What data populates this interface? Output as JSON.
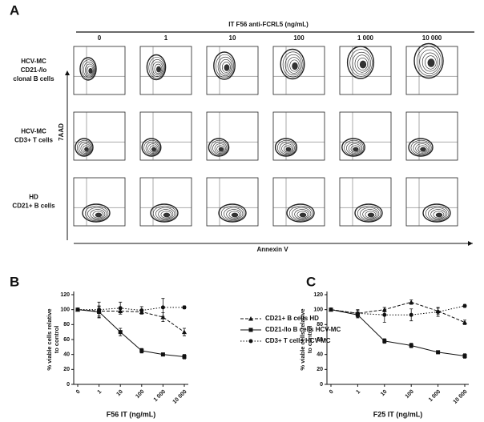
{
  "panel_a": {
    "label": "A",
    "title": "IT F56 anti-FCRL5 (ng/mL)",
    "columns": [
      "0",
      "1",
      "10",
      "100",
      "1 000",
      "10 000"
    ],
    "rows": [
      [
        "HCV-MC",
        "CD21-/lo",
        "clonal B cells"
      ],
      [
        "HCV-MC",
        "CD3+ T cells"
      ],
      [
        "HD",
        "CD21+ B cells"
      ]
    ],
    "y_label": "7AAD",
    "x_label": "Annexin V"
  },
  "chart_data": [
    {
      "type": "line",
      "panel_label": "B",
      "categories": [
        "0",
        "1",
        "10",
        "100",
        "1 000",
        "10 000"
      ],
      "x_label": "F56 IT (ng/mL)",
      "y_label": [
        "% viable cells relative",
        "to control"
      ],
      "ylim": [
        0,
        120
      ],
      "yticks": [
        0,
        20,
        40,
        60,
        80,
        100,
        120
      ],
      "series": [
        {
          "name": "CD21+ B cells HD",
          "color": "#111",
          "dash": "4 2",
          "marker": "triangle",
          "values": [
            100,
            98,
            98,
            97,
            90,
            70
          ],
          "errors": [
            0,
            6,
            4,
            3,
            6,
            5
          ]
        },
        {
          "name": "CD21-/lo B cells HCV-MC",
          "color": "#111",
          "dash": "",
          "marker": "square",
          "values": [
            100,
            97,
            70,
            45,
            40,
            37
          ],
          "errors": [
            0,
            8,
            5,
            3,
            2,
            3
          ]
        },
        {
          "name": "CD3+ T cells HCV-MC",
          "color": "#111",
          "dash": "1.5 2",
          "marker": "circle",
          "values": [
            100,
            100,
            102,
            99,
            103,
            103
          ],
          "errors": [
            0,
            10,
            8,
            5,
            12,
            2
          ]
        }
      ]
    },
    {
      "type": "line",
      "panel_label": "C",
      "categories": [
        "0",
        "1",
        "10",
        "100",
        "1 000",
        "10 000"
      ],
      "x_label": "F25 IT (ng/mL)",
      "y_label": [
        "% viable cells relative",
        "to control"
      ],
      "ylim": [
        0,
        120
      ],
      "yticks": [
        0,
        20,
        40,
        60,
        80,
        100,
        120
      ],
      "series": [
        {
          "name": "CD21+ B cells HD",
          "color": "#111",
          "dash": "4 2",
          "marker": "triangle",
          "values": [
            100,
            95,
            100,
            110,
            98,
            83
          ],
          "errors": [
            0,
            4,
            3,
            3,
            4,
            3
          ]
        },
        {
          "name": "CD21-/lo B cells HCV-MC",
          "color": "#111",
          "dash": "",
          "marker": "square",
          "values": [
            100,
            93,
            58,
            52,
            43,
            38
          ],
          "errors": [
            0,
            4,
            3,
            3,
            2,
            3
          ]
        },
        {
          "name": "CD3+ T cells HCV-MC",
          "color": "#111",
          "dash": "1.5 2",
          "marker": "circle",
          "values": [
            100,
            95,
            93,
            93,
            97,
            105
          ],
          "errors": [
            0,
            5,
            10,
            8,
            6,
            2
          ]
        }
      ]
    }
  ]
}
